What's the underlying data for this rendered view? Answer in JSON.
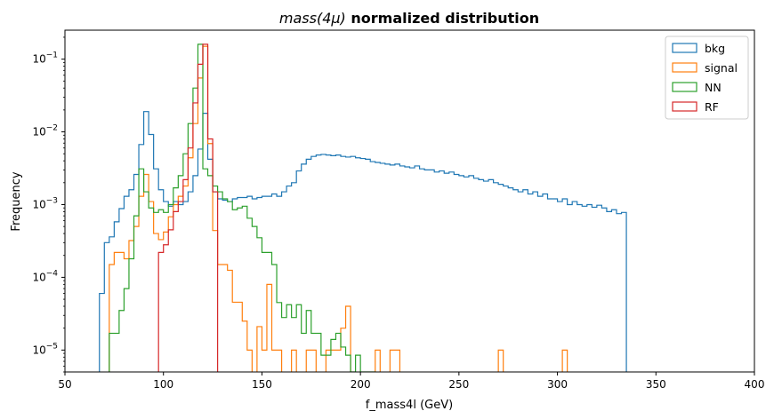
{
  "chart_data": {
    "type": "histogram-step",
    "title": {
      "italic_part": "mass(4μ)",
      "bold_part": " normalized distribution",
      "color": "#ff0000"
    },
    "xlabel": "f_mass4l (GeV)",
    "ylabel": "Frequency",
    "xlim": [
      50,
      400
    ],
    "ylim": [
      5e-06,
      0.25
    ],
    "yscale": "log",
    "x_ticks": [
      {
        "value": 50,
        "label": "50"
      },
      {
        "value": 100,
        "label": "100"
      },
      {
        "value": 150,
        "label": "150"
      },
      {
        "value": 200,
        "label": "200"
      },
      {
        "value": 250,
        "label": "250"
      },
      {
        "value": 300,
        "label": "300"
      },
      {
        "value": 350,
        "label": "350"
      },
      {
        "value": 400,
        "label": "400"
      }
    ],
    "y_ticks": [
      {
        "value": 1e-05,
        "label_base": "10",
        "label_exp": "−5"
      },
      {
        "value": 0.0001,
        "label_base": "10",
        "label_exp": "−4"
      },
      {
        "value": 0.001,
        "label_base": "10",
        "label_exp": "−3"
      },
      {
        "value": 0.01,
        "label_base": "10",
        "label_exp": "−2"
      },
      {
        "value": 0.1,
        "label_base": "10",
        "label_exp": "−1"
      }
    ],
    "bin_start": 65,
    "bin_width": 2.5,
    "legend_position": "top-right",
    "series": [
      {
        "name": "bkg",
        "color": "#1f77b4",
        "values": [
          0,
          6e-05,
          0.0003,
          0.00036,
          0.00058,
          0.00088,
          0.0013,
          0.0016,
          0.0026,
          0.0067,
          0.019,
          0.0092,
          0.0031,
          0.0016,
          0.0011,
          0.00095,
          0.0011,
          0.001,
          0.0011,
          0.0015,
          0.0025,
          0.0058,
          0.018,
          0.0042,
          0.0015,
          0.0012,
          0.00115,
          0.0011,
          0.0012,
          0.00125,
          0.00125,
          0.0013,
          0.0012,
          0.00125,
          0.0013,
          0.0013,
          0.0014,
          0.0013,
          0.0015,
          0.0018,
          0.002,
          0.0029,
          0.0036,
          0.0042,
          0.0046,
          0.0048,
          0.0049,
          0.0048,
          0.0047,
          0.0048,
          0.0046,
          0.0045,
          0.0046,
          0.0044,
          0.0043,
          0.0042,
          0.0039,
          0.0038,
          0.0037,
          0.0036,
          0.0035,
          0.0036,
          0.0034,
          0.0033,
          0.0032,
          0.0034,
          0.0031,
          0.003,
          0.003,
          0.0028,
          0.0029,
          0.0027,
          0.0028,
          0.0026,
          0.0025,
          0.0024,
          0.0025,
          0.0023,
          0.0022,
          0.0021,
          0.0022,
          0.002,
          0.0019,
          0.0018,
          0.0017,
          0.0016,
          0.0015,
          0.0016,
          0.0014,
          0.0015,
          0.0013,
          0.0014,
          0.0012,
          0.0012,
          0.0011,
          0.0012,
          0.001,
          0.0011,
          0.001,
          0.00095,
          0.001,
          0.00092,
          0.00098,
          0.0009,
          0.0008,
          0.00085,
          0.00075,
          0.00078
        ]
      },
      {
        "name": "signal",
        "color": "#ff7f0e",
        "values": [
          0,
          0,
          0,
          0.00015,
          0.00022,
          0.00022,
          0.00018,
          0.00032,
          0.0005,
          0.0013,
          0.0026,
          0.0011,
          0.0004,
          0.00033,
          0.00042,
          0.00068,
          0.001,
          0.0013,
          0.0018,
          0.0044,
          0.013,
          0.055,
          0.15,
          0.0069,
          0.00044,
          0.00015,
          0.00015,
          0.000125,
          4.55e-05,
          4.55e-05,
          2.5e-05,
          1e-05,
          0,
          2.1e-05,
          1e-05,
          8e-05,
          1e-05,
          1e-05,
          0,
          0,
          1e-05,
          0,
          0,
          1e-05,
          1e-05,
          0,
          0,
          1e-05,
          1e-05,
          1e-05,
          2e-05,
          4e-05,
          0,
          0,
          0,
          0,
          0,
          1e-05,
          0,
          0,
          1e-05,
          1e-05,
          0,
          0,
          0,
          0,
          0,
          0,
          0,
          0,
          0,
          0,
          0,
          0,
          0,
          0,
          0,
          0,
          0,
          0,
          0,
          0,
          1e-05,
          0,
          0,
          0,
          0,
          0,
          0,
          0,
          0,
          0,
          0,
          0,
          0,
          1e-05,
          0,
          0,
          0,
          0,
          0,
          0,
          0,
          0,
          0,
          0,
          0,
          0
        ]
      },
      {
        "name": "NN",
        "color": "#2ca02c",
        "values": [
          0,
          0,
          0,
          1.7e-05,
          1.7e-05,
          3.5e-05,
          7e-05,
          0.00018,
          0.0007,
          0.0031,
          0.0015,
          0.0009,
          0.00078,
          0.00085,
          0.00078,
          0.001,
          0.0017,
          0.0025,
          0.005,
          0.013,
          0.04,
          0.16,
          0.0031,
          0.0025,
          0.0018,
          0.0015,
          0.0012,
          0.0011,
          0.00085,
          0.0009,
          0.00095,
          0.00065,
          0.0005,
          0.00035,
          0.00022,
          0.00022,
          0.00015,
          4.5e-05,
          2.8e-05,
          4.2e-05,
          2.8e-05,
          4.2e-05,
          1.7e-05,
          3.5e-05,
          1.7e-05,
          1.7e-05,
          8.5e-06,
          8.5e-06,
          1.4e-05,
          1.7e-05,
          1.1e-05,
          8.5e-06,
          5e-06,
          8.5e-06,
          5e-06,
          5e-06,
          5e-06,
          0,
          0,
          0,
          0,
          0,
          0,
          0,
          0,
          0,
          0,
          0,
          0,
          0,
          0,
          0,
          0,
          0,
          0,
          0,
          0,
          0,
          0,
          0,
          0,
          0,
          0,
          0,
          0,
          0,
          0,
          0,
          0,
          0,
          0,
          0,
          0,
          0,
          0,
          0,
          0,
          0,
          0,
          0,
          0,
          0,
          0,
          0,
          0,
          0,
          0,
          0
        ]
      },
      {
        "name": "RF",
        "color": "#d62728",
        "values": [
          0,
          0,
          0,
          0,
          0,
          0,
          0,
          0,
          0,
          0,
          0,
          0,
          0,
          0.00022,
          0.00028,
          0.00045,
          0.0008,
          0.0011,
          0.0022,
          0.006,
          0.025,
          0.085,
          0.16,
          0.008,
          0.0015,
          0,
          0,
          0,
          0,
          0,
          0,
          0,
          0,
          0,
          0,
          0,
          0,
          0,
          0,
          0,
          0,
          0,
          0,
          0,
          0,
          0,
          0,
          0,
          0,
          0,
          0,
          0,
          0,
          0,
          0,
          0,
          0,
          0,
          0,
          0,
          0,
          0,
          0,
          0,
          0,
          0,
          0,
          0,
          0,
          0,
          0,
          0,
          0,
          0,
          0,
          0,
          0,
          0,
          0,
          0,
          0,
          0,
          0,
          0,
          0,
          0,
          0,
          0,
          0,
          0,
          0,
          0,
          0,
          0,
          0,
          0,
          0,
          0,
          0,
          0,
          0,
          0,
          0,
          0,
          0,
          0,
          0,
          0
        ]
      }
    ]
  }
}
